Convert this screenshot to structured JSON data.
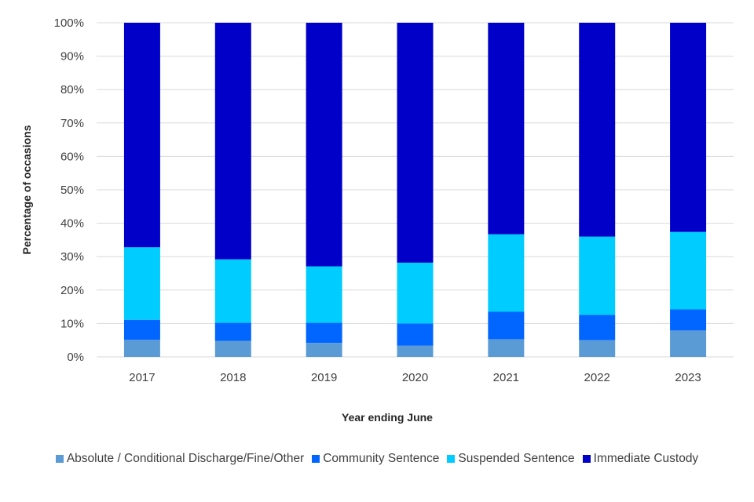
{
  "chart_data": {
    "type": "bar",
    "stacked": true,
    "title": "",
    "xlabel": "Year ending June",
    "ylabel": "Percentage of occasions",
    "ylim": [
      0,
      100
    ],
    "yticks": [
      "0%",
      "10%",
      "20%",
      "30%",
      "40%",
      "50%",
      "60%",
      "70%",
      "80%",
      "90%",
      "100%"
    ],
    "grid": true,
    "legend_position": "bottom",
    "categories": [
      "2017",
      "2018",
      "2019",
      "2020",
      "2021",
      "2022",
      "2023"
    ],
    "series": [
      {
        "name": "Absolute / Conditional Discharge/Fine/Other",
        "color": "#5b9bd5",
        "values": [
          5.1,
          4.8,
          4.2,
          3.4,
          5.3,
          5.0,
          7.9
        ]
      },
      {
        "name": "Community Sentence",
        "color": "#0066ff",
        "values": [
          6.0,
          5.4,
          6.0,
          6.6,
          8.2,
          7.6,
          6.3
        ]
      },
      {
        "name": "Suspended Sentence",
        "color": "#00ccff",
        "values": [
          21.7,
          19.0,
          16.9,
          18.2,
          23.2,
          23.4,
          23.2
        ]
      },
      {
        "name": "Immediate Custody",
        "color": "#0000c8",
        "values": [
          67.2,
          70.8,
          72.9,
          71.8,
          63.3,
          64.0,
          62.6
        ]
      }
    ]
  }
}
